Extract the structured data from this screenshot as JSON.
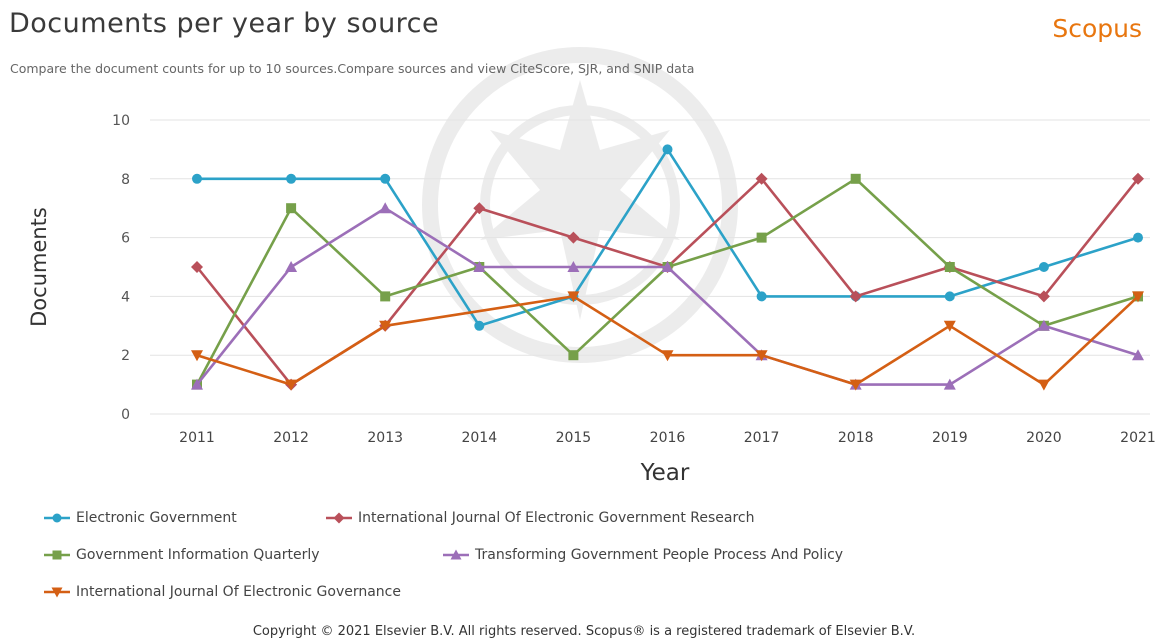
{
  "header": {
    "title": "Documents per year by source",
    "brand": "Scopus",
    "subtitle": "Compare the document counts for up to 10 sources.Compare sources and view CiteScore, SJR, and SNIP data"
  },
  "footer": {
    "copyright": "Copyright © 2021 Elsevier B.V. All rights reserved. Scopus® is a registered trademark of Elsevier B.V."
  },
  "chart_data": {
    "type": "line",
    "xlabel": "Year",
    "ylabel": "Documents",
    "ylim": [
      0,
      10
    ],
    "yticks": [
      0,
      2,
      4,
      6,
      8,
      10
    ],
    "grid": true,
    "legend_position": "bottom",
    "x": [
      "2011",
      "2012",
      "2013",
      "2014",
      "2015",
      "2016",
      "2017",
      "2018",
      "2019",
      "2020",
      "2021"
    ],
    "series": [
      {
        "name": "Electronic Government",
        "color": "#2ca2c8",
        "marker": "circle",
        "values": [
          8,
          8,
          8,
          3,
          4,
          9,
          4,
          4,
          4,
          5,
          6
        ]
      },
      {
        "name": "International Journal Of Electronic Government Research",
        "color": "#b9505a",
        "marker": "diamond",
        "values": [
          5,
          1,
          3,
          7,
          6,
          5,
          8,
          4,
          5,
          4,
          8
        ]
      },
      {
        "name": "Government Information Quarterly",
        "color": "#76a04a",
        "marker": "square",
        "values": [
          1,
          7,
          4,
          5,
          2,
          5,
          6,
          8,
          5,
          3,
          4
        ]
      },
      {
        "name": "Transforming Government People Process And Policy",
        "color": "#9c6fb8",
        "marker": "triangle-up",
        "values": [
          1,
          5,
          7,
          5,
          5,
          5,
          2,
          1,
          1,
          3,
          2
        ]
      },
      {
        "name": "International Journal Of Electronic Governance",
        "color": "#d45f14",
        "marker": "triangle-down",
        "values": [
          2,
          1,
          3,
          null,
          4,
          2,
          2,
          1,
          3,
          1,
          4
        ]
      }
    ]
  }
}
